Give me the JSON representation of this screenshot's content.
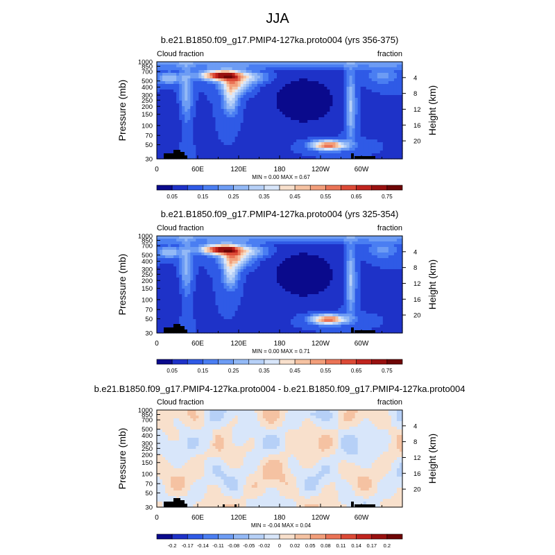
{
  "page": {
    "title": "JJA"
  },
  "chart_data": [
    {
      "type": "heatmap",
      "title": "b.e21.B1850.f09_g17.PMIP4-127ka.proto004 (yrs 356-375)",
      "left_label": "Cloud fraction",
      "right_label": "fraction",
      "xlabel": "",
      "ylabel": "Pressure (mb)",
      "ylabel_right": "Height (km)",
      "x_ticks": [
        "0",
        "60E",
        "120E",
        "180",
        "120W",
        "60W"
      ],
      "y_ticks": [
        "1000",
        "850",
        "700",
        "500",
        "400",
        "300",
        "250",
        "200",
        "150",
        "100",
        "70",
        "50",
        "30"
      ],
      "y_ticks_right": [
        "4",
        "8",
        "12",
        "16",
        "20"
      ],
      "stats": "MIN =   0.00  MAX =   0.67",
      "colorbar_labels": [
        "0.05",
        "0.15",
        "0.25",
        "0.35",
        "0.45",
        "0.55",
        "0.65",
        "0.75"
      ],
      "field": "full"
    },
    {
      "type": "heatmap",
      "title": "b.e21.B1850.f09_g17.PMIP4-127ka.proto004 (yrs 325-354)",
      "left_label": "Cloud fraction",
      "right_label": "fraction",
      "xlabel": "",
      "ylabel": "Pressure (mb)",
      "ylabel_right": "Height (km)",
      "x_ticks": [
        "0",
        "60E",
        "120E",
        "180",
        "120W",
        "60W"
      ],
      "y_ticks": [
        "1000",
        "850",
        "700",
        "500",
        "400",
        "300",
        "250",
        "200",
        "150",
        "100",
        "70",
        "50",
        "30"
      ],
      "y_ticks_right": [
        "4",
        "8",
        "12",
        "16",
        "20"
      ],
      "stats": "MIN =   0.00  MAX =   0.71",
      "colorbar_labels": [
        "0.05",
        "0.15",
        "0.25",
        "0.35",
        "0.45",
        "0.55",
        "0.65",
        "0.75"
      ],
      "field": "full"
    },
    {
      "type": "heatmap",
      "title": "b.e21.B1850.f09_g17.PMIP4-127ka.proto004 - b.e21.B1850.f09_g17.PMIP4-127ka.proto004",
      "left_label": "Cloud fraction",
      "right_label": "fraction",
      "xlabel": "",
      "ylabel": "Pressure (mb)",
      "ylabel_right": "Height (km)",
      "x_ticks": [
        "0",
        "60E",
        "120E",
        "180",
        "120W",
        "60W"
      ],
      "y_ticks": [
        "1000",
        "850",
        "700",
        "500",
        "400",
        "300",
        "250",
        "200",
        "150",
        "100",
        "70",
        "50",
        "30"
      ],
      "y_ticks_right": [
        "4",
        "8",
        "12",
        "16",
        "20"
      ],
      "stats": "MIN =  -0.04  MAX =   0.04",
      "colorbar_labels": [
        "-0.2",
        "-0.17",
        "-0.14",
        "-0.11",
        "-0.08",
        "-0.05",
        "-0.02",
        "0",
        "0.02",
        "0.05",
        "0.08",
        "0.11",
        "0.14",
        "0.17",
        "0.2"
      ],
      "field": "diff"
    }
  ],
  "colormap": [
    "#0a0a8c",
    "#1e32c8",
    "#2f5ae6",
    "#4a7ef2",
    "#6d9cf4",
    "#93b9f6",
    "#b6d0f7",
    "#d8e6fa",
    "#f8e0cc",
    "#f5c2a2",
    "#f29e7a",
    "#ea7356",
    "#dc4a36",
    "#c0241e",
    "#98100f",
    "#6e0606"
  ]
}
